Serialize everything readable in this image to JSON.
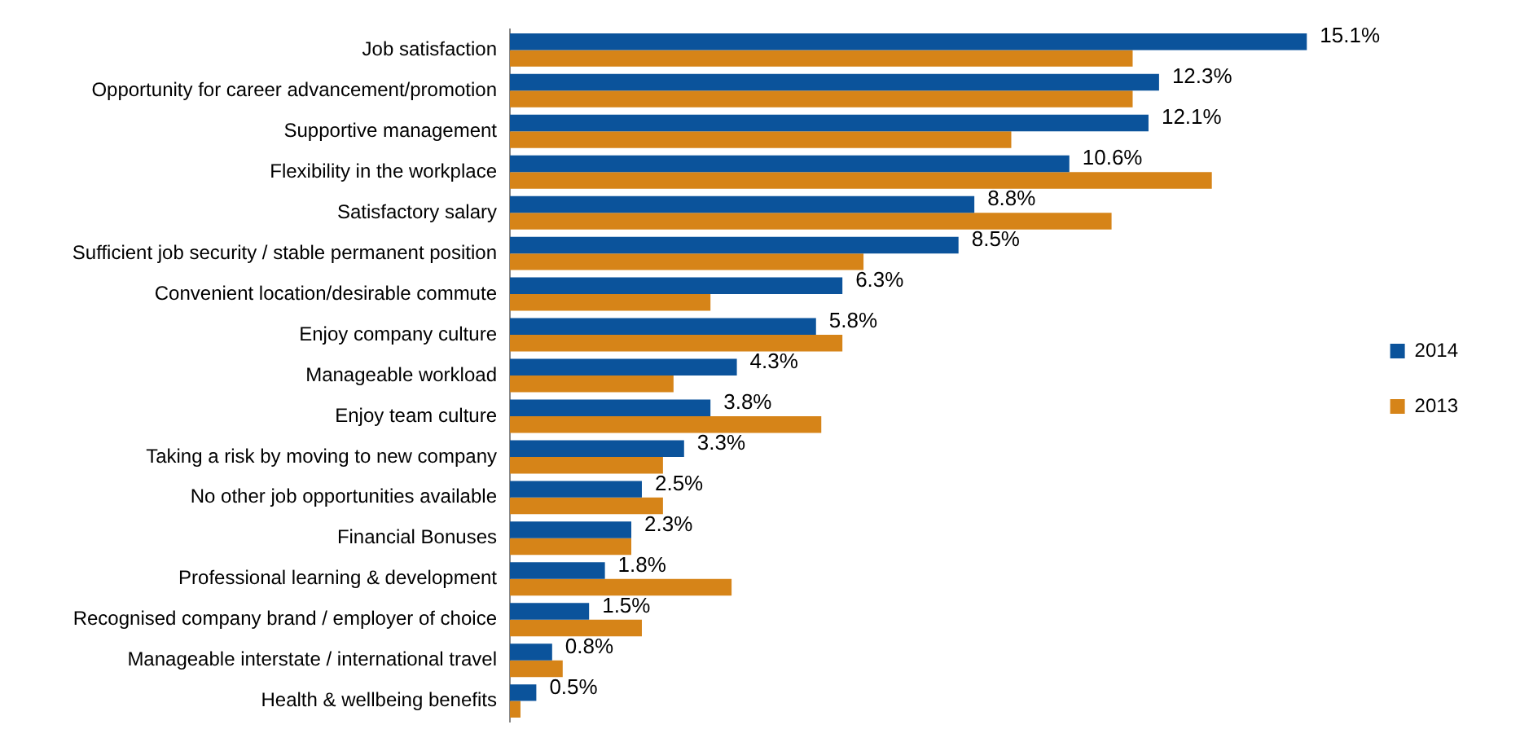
{
  "chart_data": {
    "type": "bar",
    "orientation": "horizontal",
    "categories": [
      "Job satisfaction",
      "Opportunity for career advancement/promotion",
      "Supportive management",
      "Flexibility in the workplace",
      "Satisfactory salary",
      "Sufficient job security / stable permanent position",
      "Convenient location/desirable commute",
      "Enjoy company culture",
      "Manageable workload",
      "Enjoy team culture",
      "Taking a risk by moving to new company",
      "No other job opportunities available",
      "Financial Bonuses",
      "Professional learning & development",
      "Recognised company brand / employer of choice",
      "Manageable interstate / international travel",
      "Health & wellbeing benefits"
    ],
    "series": [
      {
        "name": "2014",
        "color": "#0b539b",
        "values": [
          15.1,
          12.3,
          12.1,
          10.6,
          8.8,
          8.5,
          6.3,
          5.8,
          4.3,
          3.8,
          3.3,
          2.5,
          2.3,
          1.8,
          1.5,
          0.8,
          0.5
        ],
        "value_labels": [
          "15.1%",
          "12.3%",
          "12.1%",
          "10.6%",
          "8.8%",
          "8.5%",
          "6.3%",
          "5.8%",
          "4.3%",
          "3.8%",
          "3.3%",
          "2.5%",
          "2.3%",
          "1.8%",
          "1.5%",
          "0.8%",
          "0.5%"
        ]
      },
      {
        "name": "2013",
        "color": "#d68418",
        "values": [
          11.8,
          11.8,
          9.5,
          13.3,
          11.4,
          6.7,
          3.8,
          6.3,
          3.1,
          5.9,
          2.9,
          2.9,
          2.3,
          4.2,
          2.5,
          1.0,
          0.2
        ]
      }
    ],
    "legend": "right",
    "grid": false
  }
}
